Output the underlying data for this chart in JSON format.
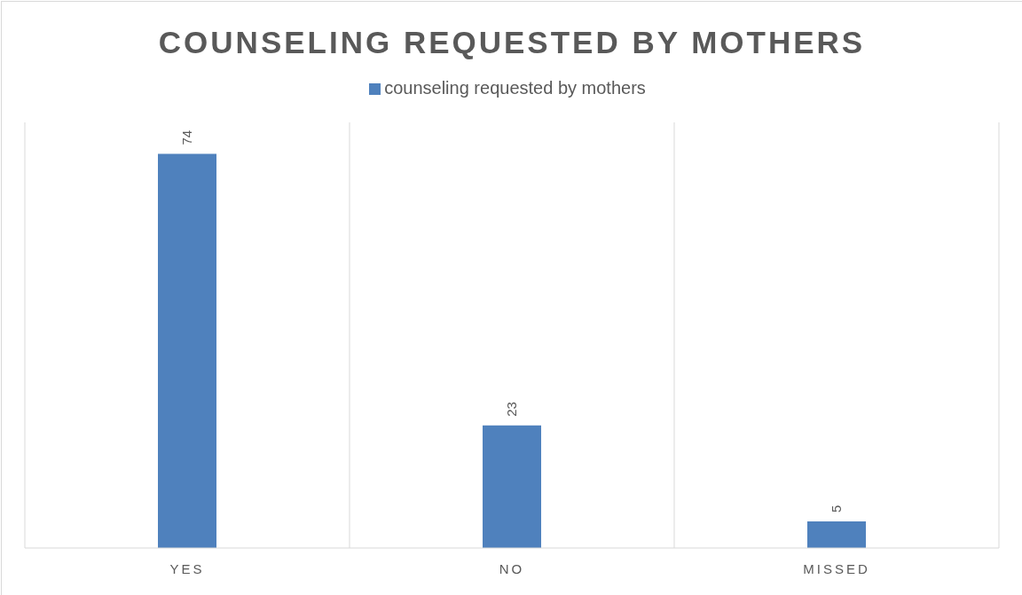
{
  "chart_data": {
    "type": "bar",
    "title": "COUNSELING REQUESTED BY MOTHERS",
    "categories": [
      "YES",
      "NO",
      "MISSED"
    ],
    "series": [
      {
        "name": "counseling requested by mothers",
        "color": "#4f81bd",
        "values": [
          74,
          23,
          5
        ]
      }
    ],
    "data_labels": true,
    "grid": "x",
    "legend": "top"
  }
}
